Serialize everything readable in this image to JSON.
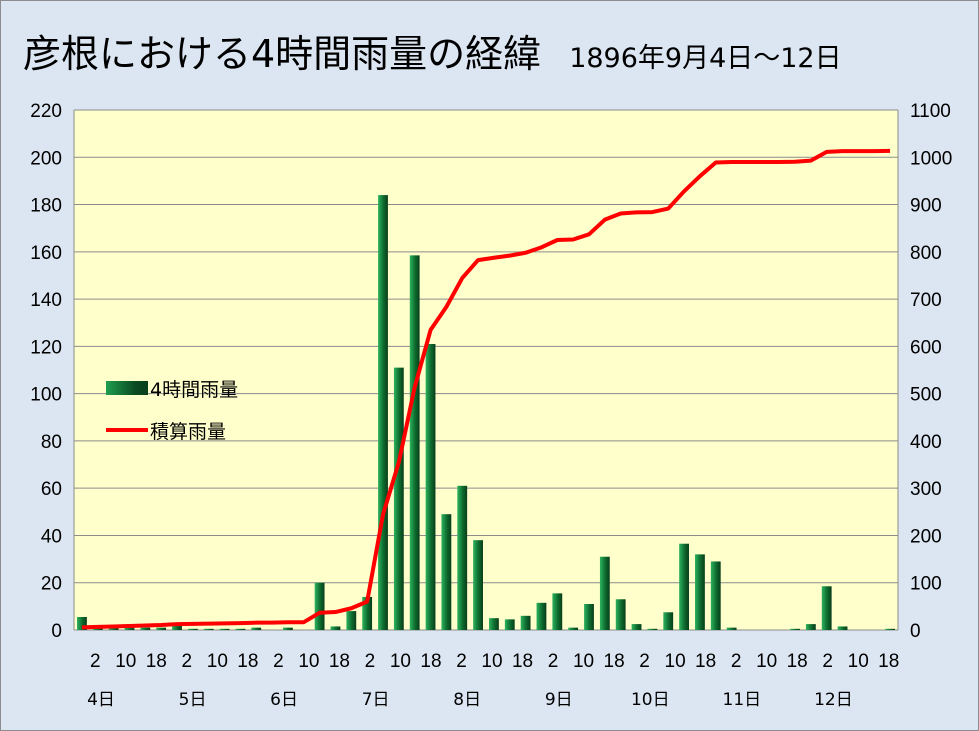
{
  "title": "彦根における4時間雨量の経緯",
  "subtitle": "1896年9月4日～12日",
  "colors": {
    "bar": "#0f7a36",
    "line": "#ff0000",
    "plot_bg": "#ffffcc",
    "page_bg": "#dce6f2",
    "grid": "#8c8c8c"
  },
  "chart_data": {
    "type": "bar+line",
    "title": "彦根における4時間雨量の経緯",
    "subtitle": "1896年9月4日～12日",
    "xlabel": "",
    "ylabel": "",
    "y_left": {
      "min": 0,
      "max": 220,
      "ticks": [
        0,
        20,
        40,
        60,
        80,
        100,
        120,
        140,
        160,
        180,
        200,
        220
      ]
    },
    "y_right": {
      "min": 0,
      "max": 1100,
      "ticks": [
        0,
        100,
        200,
        300,
        400,
        500,
        600,
        700,
        800,
        900,
        1000,
        1100
      ]
    },
    "x_tick_labels": [
      "2",
      "10",
      "18",
      "2",
      "10",
      "18",
      "2",
      "10",
      "18",
      "2",
      "10",
      "18",
      "2",
      "10",
      "18",
      "2",
      "10",
      "18",
      "2",
      "10",
      "18",
      "2",
      "10",
      "18",
      "2",
      "10",
      "18"
    ],
    "day_labels": [
      "4日",
      "5日",
      "6日",
      "7日",
      "8日",
      "9日",
      "10日",
      "11日",
      "12日"
    ],
    "grid": true,
    "legend_position": "middle-left",
    "series": [
      {
        "name": "4時間雨量",
        "type": "bar",
        "axis": "left",
        "values": [
          5.5,
          1,
          1,
          1,
          1,
          1,
          2,
          0.5,
          0.5,
          0.5,
          0.5,
          1,
          0,
          1,
          0,
          20,
          1.5,
          8,
          14,
          184,
          111,
          158.5,
          121,
          49,
          61,
          38,
          5,
          4.5,
          6,
          11.5,
          15.5,
          1,
          11,
          31,
          13,
          2.5,
          0.5,
          7.5,
          36.5,
          32,
          29,
          1,
          0,
          0,
          0,
          0.5,
          2.5,
          18.5,
          1.5,
          0,
          0,
          0.5
        ]
      },
      {
        "name": "積算雨量",
        "type": "line",
        "axis": "right",
        "values": [
          5.5,
          6.5,
          7.5,
          8.5,
          9.5,
          10.5,
          12.5,
          13,
          13.5,
          14,
          14.5,
          15.5,
          15.5,
          16.5,
          16.5,
          36.5,
          38,
          46,
          60,
          244,
          355,
          513.5,
          634.5,
          683.5,
          744.5,
          782.5,
          787.5,
          792,
          798,
          809.5,
          825,
          826,
          837,
          868,
          881,
          883.5,
          884,
          891.5,
          928,
          960,
          989,
          990,
          990,
          990,
          990,
          990.5,
          993,
          1011.5,
          1013,
          1013,
          1013,
          1013.5
        ]
      }
    ]
  },
  "legend": {
    "bar_label": "4時間雨量",
    "line_label": "積算雨量"
  }
}
